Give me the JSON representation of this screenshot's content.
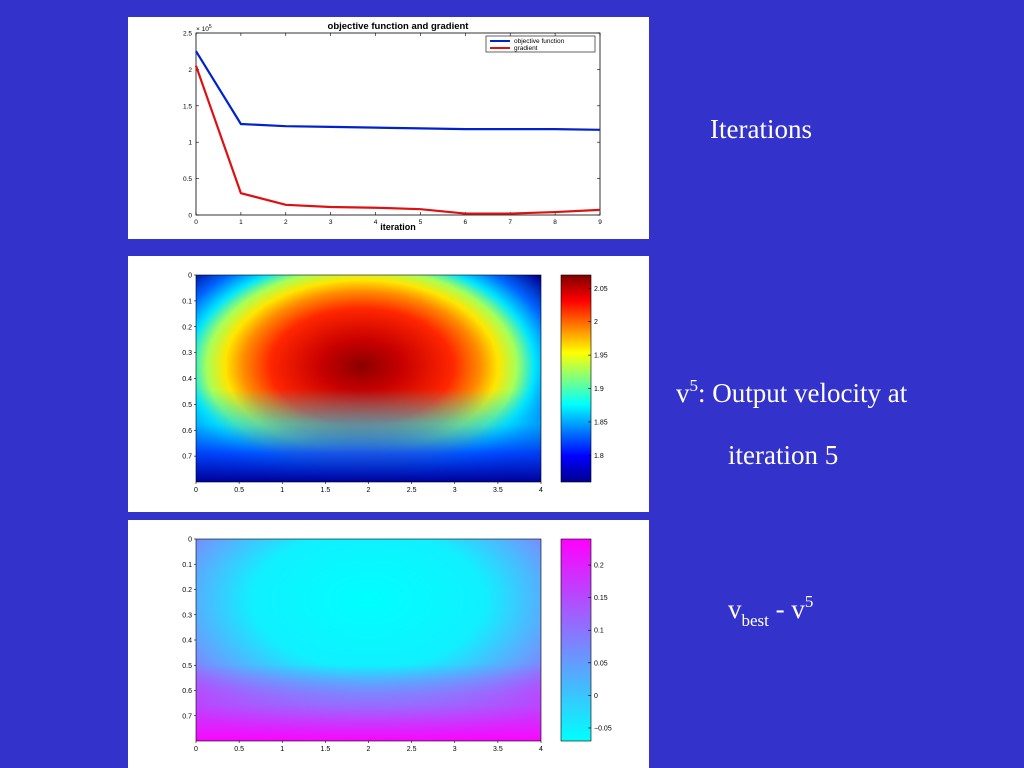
{
  "captions": {
    "iterations": "Iterations",
    "velocity": {
      "v": "v",
      "sup": "5",
      "rest": ": Output velocity at",
      "line2": "iteration 5"
    },
    "difference": {
      "v": "v",
      "sub": "best",
      "minus": " - ",
      "v2": "v",
      "sup": "5"
    }
  },
  "chart_data": [
    {
      "type": "line",
      "title": "objective function and gradient",
      "xlabel": "iteration",
      "ylabel": "",
      "y_multiplier_label": "× 10",
      "y_multiplier_exp": "5",
      "xlim": [
        0,
        9
      ],
      "ylim": [
        0,
        2.5
      ],
      "x_ticks": [
        "0",
        "1",
        "2",
        "3",
        "4",
        "5",
        "6",
        "7",
        "8",
        "9"
      ],
      "y_ticks": [
        "0",
        "0.5",
        "1",
        "1.5",
        "2",
        "2.5"
      ],
      "legend_placement": "top-right",
      "x": [
        0,
        1,
        2,
        3,
        4,
        5,
        6,
        7,
        8,
        9
      ],
      "series": [
        {
          "name": "objective function",
          "color": "#0022cc",
          "values": [
            2.25,
            1.25,
            1.22,
            1.21,
            1.2,
            1.19,
            1.18,
            1.18,
            1.18,
            1.17
          ]
        },
        {
          "name": "gradient",
          "color": "#dd1111",
          "values": [
            2.05,
            0.3,
            0.14,
            0.11,
            0.1,
            0.08,
            0.02,
            0.02,
            0.04,
            0.07
          ]
        }
      ]
    },
    {
      "type": "heatmap",
      "colormap": "jet",
      "xlim": [
        0,
        4
      ],
      "ylim": [
        0,
        0.8
      ],
      "x_ticks": [
        "0",
        "0.5",
        "1",
        "1.5",
        "2",
        "2.5",
        "3",
        "3.5",
        "4"
      ],
      "y_ticks": [
        "0",
        "0.1",
        "0.2",
        "0.3",
        "0.4",
        "0.5",
        "0.6",
        "0.7"
      ],
      "colorbar_range": [
        1.76,
        2.07
      ],
      "colorbar_ticks": [
        "2.05",
        "2",
        "1.95",
        "1.9",
        "1.85",
        "1.8"
      ],
      "colorbar_tick_values": [
        2.05,
        2.0,
        1.95,
        1.9,
        1.85,
        1.8
      ],
      "peak": {
        "x": 2.2,
        "y": 0.37,
        "value": 2.06
      }
    },
    {
      "type": "heatmap",
      "colormap": "cool",
      "xlim": [
        0,
        4
      ],
      "ylim": [
        0,
        0.8
      ],
      "x_ticks": [
        "0",
        "0.5",
        "1",
        "1.5",
        "2",
        "2.5",
        "3",
        "3.5",
        "4"
      ],
      "y_ticks": [
        "0",
        "0.1",
        "0.2",
        "0.3",
        "0.4",
        "0.5",
        "0.6",
        "0.7"
      ],
      "colorbar_range": [
        -0.07,
        0.24
      ],
      "colorbar_ticks": [
        "0.2",
        "0.15",
        "0.1",
        "0.05",
        "0",
        "−0.05"
      ],
      "colorbar_tick_values": [
        0.2,
        0.15,
        0.1,
        0.05,
        0,
        -0.05
      ]
    }
  ]
}
